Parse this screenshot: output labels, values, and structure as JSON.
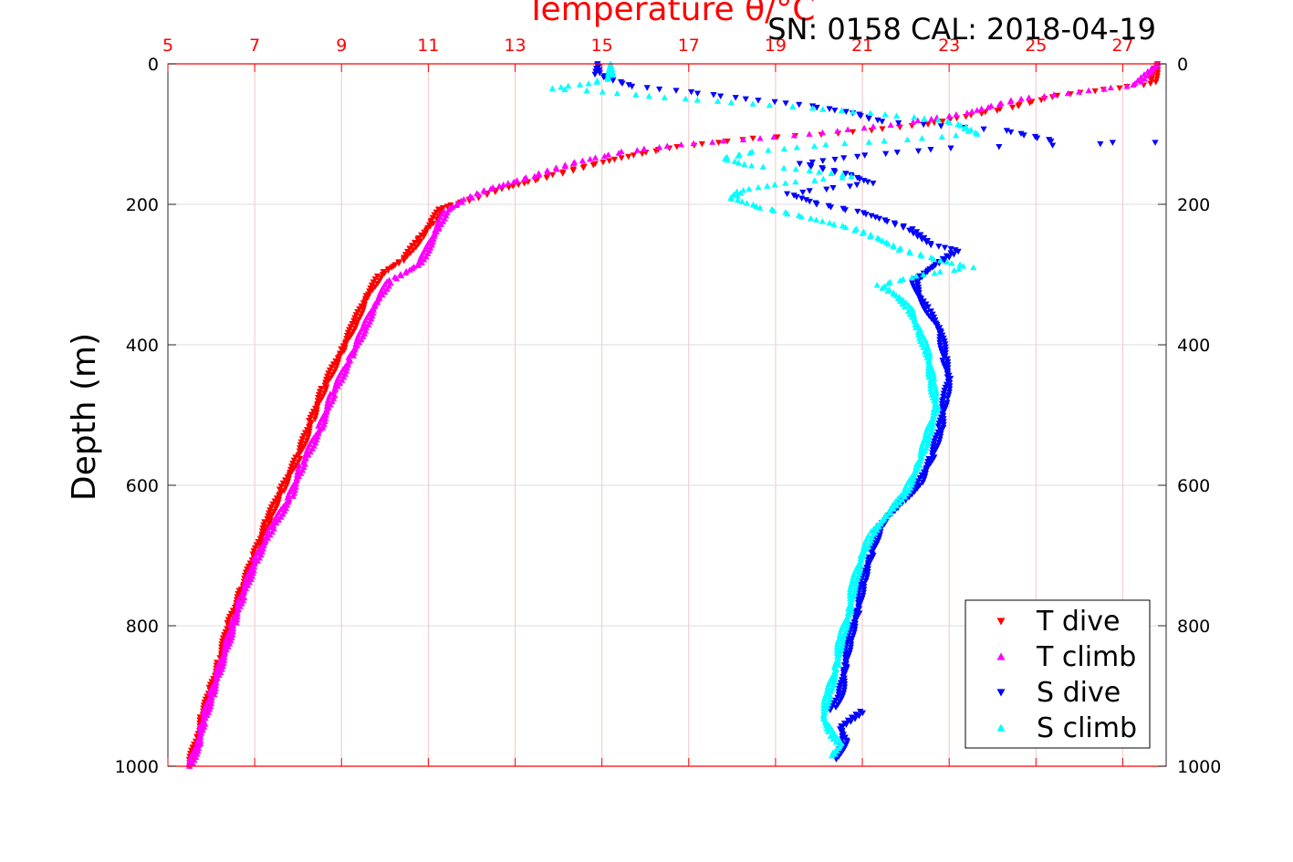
{
  "header": {
    "top_axis_title": "Temperature θ/°C",
    "info": "SN: 0158  CAL: 2018-04-19"
  },
  "chart_data": {
    "type": "scatter",
    "ylabel": "Depth (m)",
    "xlabel_top": "Temperature θ/°C",
    "xlim_temperature": [
      5,
      28
    ],
    "ylim_depth": [
      0,
      1000
    ],
    "y_reversed": true,
    "x_ticks": [
      5,
      7,
      9,
      11,
      13,
      15,
      17,
      19,
      21,
      23,
      25,
      27
    ],
    "y_ticks": [
      0,
      200,
      400,
      600,
      800,
      1000
    ],
    "grid": true,
    "legend_placement": "bottom-right",
    "series": [
      {
        "name": "T dive",
        "color": "#ff0000",
        "marker": "triangle-down",
        "points": [
          [
            27.8,
            0
          ],
          [
            27.7,
            28
          ],
          [
            25.5,
            45
          ],
          [
            24.4,
            62
          ],
          [
            22.5,
            86
          ],
          [
            20.5,
            99
          ],
          [
            18.5,
            106
          ],
          [
            16.5,
            120
          ],
          [
            15.0,
            140
          ],
          [
            13.8,
            160
          ],
          [
            12.6,
            180
          ],
          [
            11.9,
            195
          ],
          [
            11.3,
            205
          ],
          [
            11.1,
            225
          ],
          [
            10.8,
            250
          ],
          [
            10.4,
            280
          ],
          [
            9.9,
            300
          ],
          [
            9.6,
            330
          ],
          [
            9.3,
            370
          ],
          [
            9.0,
            410
          ],
          [
            8.6,
            460
          ],
          [
            8.3,
            510
          ],
          [
            8.0,
            560
          ],
          [
            7.6,
            610
          ],
          [
            7.3,
            650
          ],
          [
            7.0,
            700
          ],
          [
            6.7,
            750
          ],
          [
            6.4,
            800
          ],
          [
            6.2,
            850
          ],
          [
            6.0,
            890
          ],
          [
            5.8,
            930
          ],
          [
            5.7,
            960
          ],
          [
            5.5,
            995
          ]
        ]
      },
      {
        "name": "T climb",
        "color": "#ff00ff",
        "marker": "triangle-up",
        "points": [
          [
            27.8,
            0
          ],
          [
            27.3,
            30
          ],
          [
            26.0,
            40
          ],
          [
            24.6,
            50
          ],
          [
            23.4,
            70
          ],
          [
            21.9,
            85
          ],
          [
            19.8,
            100
          ],
          [
            18.2,
            108
          ],
          [
            16.8,
            115
          ],
          [
            15.5,
            125
          ],
          [
            14.4,
            140
          ],
          [
            13.4,
            160
          ],
          [
            12.4,
            178
          ],
          [
            11.8,
            195
          ],
          [
            11.4,
            210
          ],
          [
            11.2,
            235
          ],
          [
            11.0,
            262
          ],
          [
            10.8,
            285
          ],
          [
            10.1,
            310
          ],
          [
            9.8,
            340
          ],
          [
            9.5,
            380
          ],
          [
            9.2,
            420
          ],
          [
            8.8,
            470
          ],
          [
            8.5,
            520
          ],
          [
            8.1,
            570
          ],
          [
            7.8,
            620
          ],
          [
            7.4,
            660
          ],
          [
            7.0,
            710
          ],
          [
            6.7,
            760
          ],
          [
            6.5,
            800
          ],
          [
            6.2,
            860
          ],
          [
            6.0,
            900
          ],
          [
            5.8,
            940
          ],
          [
            5.7,
            970
          ],
          [
            5.5,
            1000
          ]
        ]
      },
      {
        "name": "S dive",
        "color": "#0000ff",
        "marker": "triangle-down",
        "points": [
          [
            14.9,
            0
          ],
          [
            14.9,
            15
          ],
          [
            15.7,
            32
          ],
          [
            17.0,
            40
          ],
          [
            18.3,
            50
          ],
          [
            19.6,
            58
          ],
          [
            20.8,
            70
          ],
          [
            21.4,
            82
          ],
          [
            24.3,
            95
          ],
          [
            25.4,
            110
          ],
          [
            26.8,
            112
          ],
          [
            27.7,
            112
          ],
          [
            23.0,
            120
          ],
          [
            21.1,
            130
          ],
          [
            19.6,
            142
          ],
          [
            20.7,
            158
          ],
          [
            21.2,
            170
          ],
          [
            19.3,
            185
          ],
          [
            20.0,
            200
          ],
          [
            21.0,
            212
          ],
          [
            22.1,
            235
          ],
          [
            22.6,
            258
          ],
          [
            23.2,
            265
          ],
          [
            22.6,
            290
          ],
          [
            22.2,
            310
          ],
          [
            22.3,
            330
          ],
          [
            22.5,
            350
          ],
          [
            22.8,
            380
          ],
          [
            22.9,
            420
          ],
          [
            23.0,
            450
          ],
          [
            22.9,
            480
          ],
          [
            22.8,
            520
          ],
          [
            22.6,
            560
          ],
          [
            22.3,
            600
          ],
          [
            21.8,
            630
          ],
          [
            21.4,
            660
          ],
          [
            21.2,
            700
          ],
          [
            21.0,
            740
          ],
          [
            20.9,
            780
          ],
          [
            20.7,
            820
          ],
          [
            20.6,
            860
          ],
          [
            20.5,
            900
          ],
          [
            20.3,
            920
          ],
          [
            21.0,
            922
          ],
          [
            20.5,
            945
          ],
          [
            20.6,
            965
          ],
          [
            20.4,
            990
          ]
        ]
      },
      {
        "name": "S climb",
        "color": "#00ffff",
        "marker": "triangle-up",
        "points": [
          [
            15.2,
            0
          ],
          [
            15.2,
            20
          ],
          [
            14.7,
            28
          ],
          [
            13.8,
            35
          ],
          [
            15.0,
            40
          ],
          [
            16.5,
            48
          ],
          [
            18.0,
            55
          ],
          [
            19.8,
            63
          ],
          [
            21.5,
            72
          ],
          [
            22.8,
            80
          ],
          [
            23.3,
            88
          ],
          [
            23.6,
            100
          ],
          [
            22.0,
            108
          ],
          [
            20.2,
            115
          ],
          [
            18.5,
            125
          ],
          [
            17.8,
            135
          ],
          [
            18.4,
            145
          ],
          [
            19.5,
            150
          ],
          [
            20.8,
            160
          ],
          [
            19.2,
            170
          ],
          [
            18.2,
            180
          ],
          [
            18.0,
            192
          ],
          [
            18.7,
            205
          ],
          [
            19.8,
            220
          ],
          [
            20.8,
            235
          ],
          [
            21.4,
            250
          ],
          [
            21.9,
            265
          ],
          [
            22.8,
            280
          ],
          [
            23.5,
            290
          ],
          [
            22.4,
            300
          ],
          [
            21.4,
            315
          ],
          [
            21.8,
            330
          ],
          [
            22.1,
            350
          ],
          [
            22.3,
            380
          ],
          [
            22.5,
            410
          ],
          [
            22.6,
            450
          ],
          [
            22.7,
            490
          ],
          [
            22.5,
            530
          ],
          [
            22.3,
            570
          ],
          [
            22.0,
            610
          ],
          [
            21.6,
            640
          ],
          [
            21.2,
            670
          ],
          [
            21.0,
            700
          ],
          [
            20.8,
            740
          ],
          [
            20.7,
            780
          ],
          [
            20.5,
            820
          ],
          [
            20.4,
            860
          ],
          [
            20.2,
            900
          ],
          [
            20.1,
            930
          ],
          [
            20.3,
            955
          ],
          [
            20.5,
            970
          ],
          [
            20.3,
            985
          ]
        ]
      }
    ]
  }
}
